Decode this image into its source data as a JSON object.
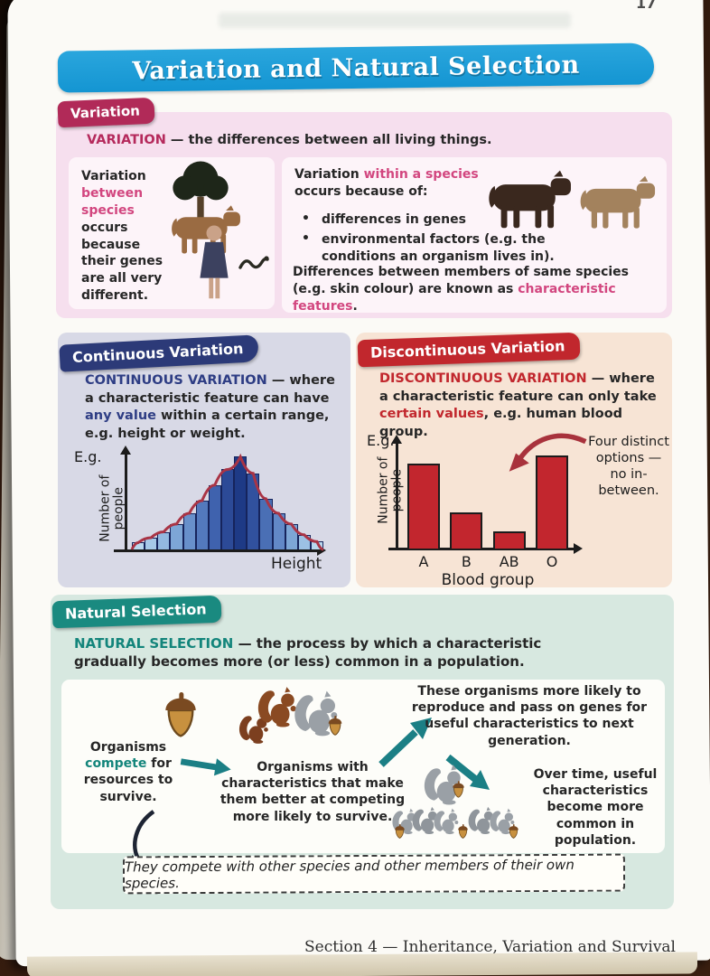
{
  "page": {
    "number": "17",
    "title": "Variation and Natural Selection",
    "footer": "Section 4 — Inheritance, Variation and Survival"
  },
  "colors": {
    "banner_blue": "#1495d2",
    "variation_crimson": "#b52a5c",
    "continuous_navy": "#2e3d84",
    "discontinuous_red": "#c1272d",
    "natural_teal": "#13857b",
    "histogram_curve": "#a93445",
    "blood_bar_red": "#c2262e"
  },
  "variation": {
    "tab": "Variation",
    "def_term": "VARIATION",
    "def_rest": " — the differences between all living things.",
    "left_pre": "Variation ",
    "left_highlight": "between species",
    "left_post": " occurs because their genes are all very different.",
    "right_pre": "Variation ",
    "right_highlight": "within a species",
    "right_post": " occurs because of:",
    "bullets": [
      "differences in genes",
      "environmental factors (e.g. the conditions an organism lives in)."
    ],
    "outro_pre": "Differences between members of same species (e.g. skin colour) are known as ",
    "outro_highlight": "characteristic features",
    "outro_end": "."
  },
  "continuous": {
    "tab": "Continuous Variation",
    "term": "CONTINUOUS VARIATION",
    "body_1": " — where a characteristic feature can have ",
    "highlight": "any value",
    "body_2": " within a certain range, e.g. height or weight."
  },
  "discontinuous": {
    "tab": "Discontinuous Variation",
    "term": "DISCONTINUOUS VARIATION",
    "body_1": " — where a characteristic feature can only take ",
    "highlight": "certain values",
    "body_2": ", e.g. human blood group."
  },
  "natural": {
    "tab": "Natural Selection",
    "term": "NATURAL SELECTION",
    "body": " — the process by which a characteristic gradually becomes more (or less) common in a population.",
    "step1_pre": "Organisms ",
    "step1_highlight": "compete",
    "step1_post": " for resources to survive.",
    "step2": "Organisms with characteristics that make them better at competing more likely to survive.",
    "step3": "These organisms more likely to reproduce and pass on genes for useful characteristics to next generation.",
    "step4": "Over time, useful characteristics become more common in population.",
    "note": "They compete with other species and other members of their own species."
  },
  "chart_data": [
    {
      "type": "bar",
      "subtype": "histogram-with-bell-curve",
      "eg_label": "E.g.",
      "ylabel": "Number of people",
      "xlabel": "Height",
      "categories": [
        "bin1",
        "bin2",
        "bin3",
        "bin4",
        "bin5",
        "bin6",
        "bin7",
        "bin8",
        "bin9",
        "bin10",
        "bin11",
        "bin12",
        "bin13",
        "bin14",
        "bin15"
      ],
      "values": [
        7,
        12,
        18,
        26,
        37,
        50,
        66,
        82,
        95,
        78,
        52,
        37,
        26,
        15,
        8
      ],
      "ylim": [
        0,
        100
      ],
      "grid": false,
      "bar_colors": [
        "#b9d8ee",
        "#a6c9e8",
        "#93b9e0",
        "#7da6d6",
        "#6890cb",
        "#5379bd",
        "#3f62ae",
        "#2c4a97",
        "#1e3a86",
        "#31519e",
        "#4a6fb5",
        "#6288c7",
        "#7da6d6",
        "#9cc1e4",
        "#b9d8ee"
      ],
      "curve_color": "#a93445"
    },
    {
      "type": "bar",
      "eg_label": "E.g.",
      "ylabel": "Number of people",
      "xlabel": "Blood group",
      "categories": [
        "A",
        "B",
        "AB",
        "O"
      ],
      "values": [
        78,
        33,
        16,
        86
      ],
      "ylim": [
        0,
        100
      ],
      "grid": false,
      "bar_color": "#c2262e",
      "annotation": "Four distinct options — no in-between."
    }
  ]
}
